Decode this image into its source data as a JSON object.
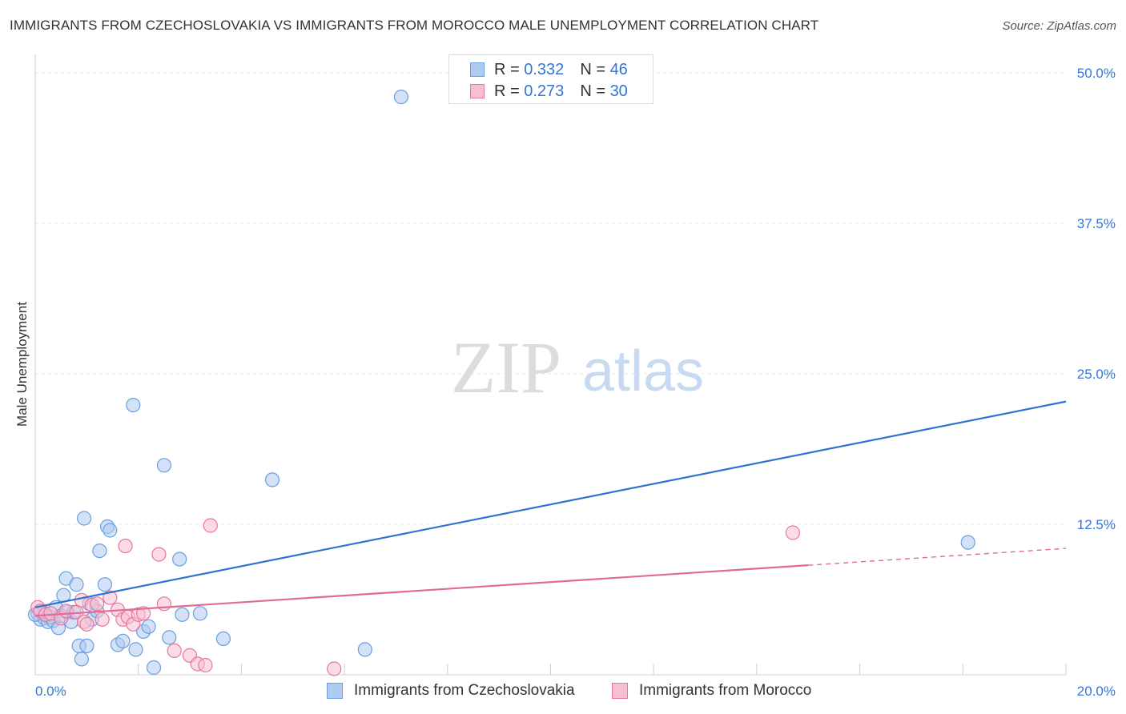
{
  "title": "IMMIGRANTS FROM CZECHOSLOVAKIA VS IMMIGRANTS FROM MOROCCO MALE UNEMPLOYMENT CORRELATION CHART",
  "source": "Source: ZipAtlas.com",
  "watermark": {
    "zip": "ZIP",
    "atlas": "atlas"
  },
  "legend_top": [
    {
      "r_label": "R =",
      "r_value": "0.332",
      "n_label": "N =",
      "n_value": "46"
    },
    {
      "r_label": "R =",
      "r_value": "0.273",
      "n_label": "N =",
      "n_value": "30"
    }
  ],
  "chart_data": {
    "type": "scatter",
    "title": "IMMIGRANTS FROM CZECHOSLOVAKIA VS IMMIGRANTS FROM MOROCCO MALE UNEMPLOYMENT CORRELATION CHART",
    "xlabel": "",
    "ylabel": "Male Unemployment",
    "xlim": [
      0,
      20
    ],
    "ylim": [
      0,
      51
    ],
    "x_tick_labels": [
      "0.0%",
      "20.0%"
    ],
    "y_ticks": [
      12.5,
      25.0,
      37.5,
      50.0
    ],
    "y_tick_labels": [
      "12.5%",
      "25.0%",
      "37.5%",
      "50.0%"
    ],
    "grid": true,
    "series": [
      {
        "name": "Immigrants from Czechoslovakia",
        "color": "#6a9fe0",
        "fill": "#aecbf0",
        "r": 0.332,
        "n": 46,
        "trend": {
          "x0": 0,
          "y0": 5.6,
          "x1": 20,
          "y1": 22.7,
          "dashed_from": null
        },
        "points": [
          [
            0.05,
            5.1
          ],
          [
            0.1,
            4.6
          ],
          [
            0.12,
            5.3
          ],
          [
            0.18,
            4.7
          ],
          [
            0.2,
            5.0
          ],
          [
            0.25,
            4.4
          ],
          [
            0.3,
            4.8
          ],
          [
            0.35,
            4.5
          ],
          [
            0.4,
            5.6
          ],
          [
            0.45,
            3.9
          ],
          [
            0.5,
            4.9
          ],
          [
            0.55,
            6.6
          ],
          [
            0.6,
            8.0
          ],
          [
            0.62,
            5.2
          ],
          [
            0.7,
            4.4
          ],
          [
            0.75,
            5.2
          ],
          [
            0.8,
            7.5
          ],
          [
            0.85,
            2.4
          ],
          [
            0.9,
            1.3
          ],
          [
            0.95,
            13.0
          ],
          [
            1.0,
            2.4
          ],
          [
            1.05,
            5.9
          ],
          [
            1.1,
            4.6
          ],
          [
            1.2,
            5.3
          ],
          [
            1.25,
            10.3
          ],
          [
            1.35,
            7.5
          ],
          [
            1.4,
            12.3
          ],
          [
            1.45,
            12.0
          ],
          [
            1.6,
            2.5
          ],
          [
            1.7,
            2.8
          ],
          [
            1.9,
            22.4
          ],
          [
            1.95,
            2.1
          ],
          [
            2.1,
            3.6
          ],
          [
            2.2,
            4.0
          ],
          [
            2.3,
            0.6
          ],
          [
            2.5,
            17.4
          ],
          [
            2.6,
            3.1
          ],
          [
            2.8,
            9.6
          ],
          [
            2.85,
            5.0
          ],
          [
            3.2,
            5.1
          ],
          [
            3.65,
            3.0
          ],
          [
            4.6,
            16.2
          ],
          [
            6.4,
            2.1
          ],
          [
            7.1,
            48.0
          ],
          [
            18.1,
            11.0
          ],
          [
            0.0,
            5.0
          ]
        ]
      },
      {
        "name": "Immigrants from Morocco",
        "color": "#e8769e",
        "fill": "#f7bfd2",
        "r": 0.273,
        "n": 30,
        "trend": {
          "x0": 0,
          "y0": 4.9,
          "x1": 20,
          "y1": 10.5,
          "dashed_from": 15.0
        },
        "points": [
          [
            0.05,
            5.6
          ],
          [
            0.1,
            5.3
          ],
          [
            0.2,
            5.0
          ],
          [
            0.3,
            5.1
          ],
          [
            0.5,
            4.7
          ],
          [
            0.6,
            5.3
          ],
          [
            0.8,
            5.2
          ],
          [
            0.9,
            6.2
          ],
          [
            0.95,
            4.4
          ],
          [
            1.0,
            4.2
          ],
          [
            1.1,
            5.8
          ],
          [
            1.2,
            5.9
          ],
          [
            1.3,
            4.6
          ],
          [
            1.45,
            6.4
          ],
          [
            1.6,
            5.4
          ],
          [
            1.7,
            4.6
          ],
          [
            1.8,
            4.8
          ],
          [
            1.9,
            4.2
          ],
          [
            2.0,
            5.0
          ],
          [
            2.1,
            5.1
          ],
          [
            1.75,
            10.7
          ],
          [
            2.4,
            10.0
          ],
          [
            2.5,
            5.9
          ],
          [
            2.7,
            2.0
          ],
          [
            3.0,
            1.6
          ],
          [
            3.15,
            0.9
          ],
          [
            3.3,
            0.8
          ],
          [
            3.4,
            12.4
          ],
          [
            5.8,
            0.5
          ],
          [
            14.7,
            11.8
          ]
        ]
      }
    ]
  },
  "legend_bottom": [
    {
      "label": "Immigrants from Czechoslovakia"
    },
    {
      "label": "Immigrants from Morocco"
    }
  ]
}
